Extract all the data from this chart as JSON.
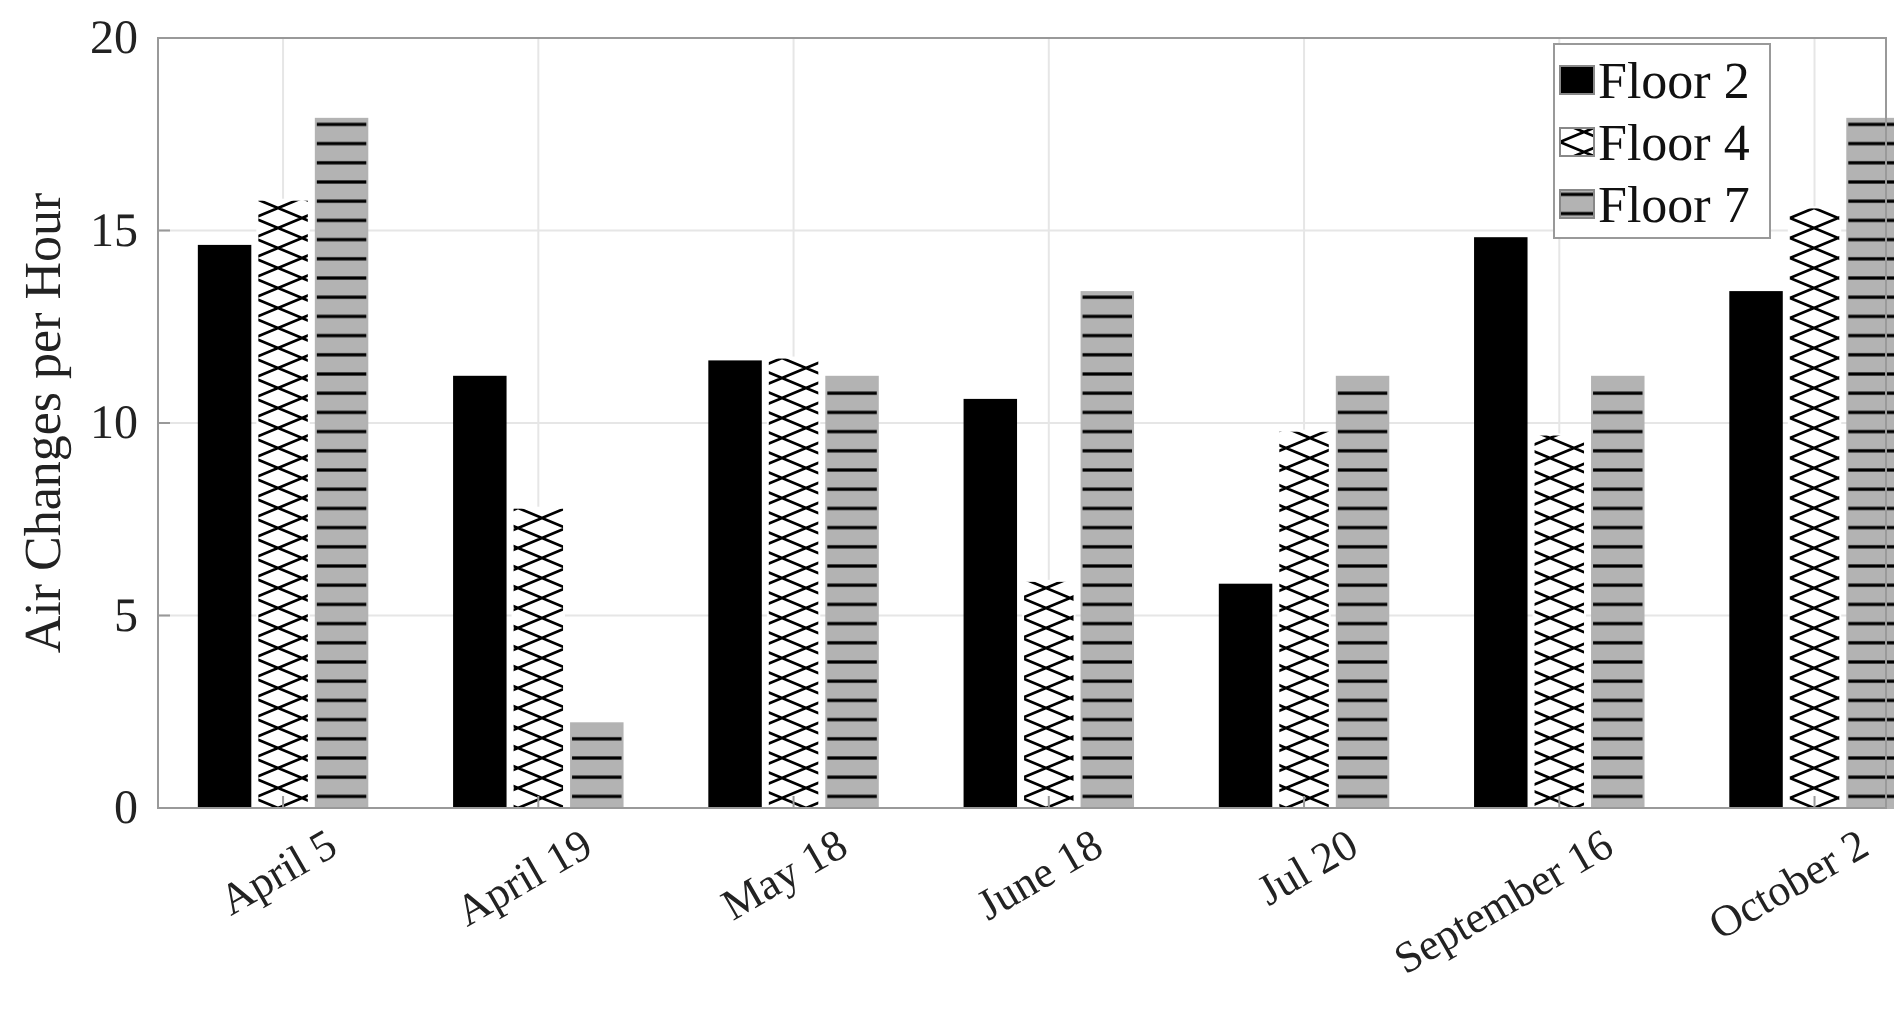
{
  "chart_data": {
    "type": "bar",
    "ylabel": "Air Changes per Hour",
    "categories": [
      "April 5",
      "April 19",
      "May 18",
      "June 18",
      "Jul 20",
      "September 16",
      "October 2"
    ],
    "series": [
      {
        "name": "Floor 2",
        "color": "#000000",
        "values": [
          14.6,
          11.2,
          11.6,
          10.6,
          5.8,
          14.8,
          13.4
        ]
      },
      {
        "name": "Floor 4",
        "color": "#ffffff",
        "values": [
          15.8,
          7.8,
          11.7,
          5.9,
          9.8,
          9.7,
          15.6
        ]
      },
      {
        "name": "Floor 7",
        "color": "#b3b3b3",
        "values": [
          17.9,
          2.2,
          11.2,
          13.4,
          11.2,
          11.2,
          17.9
        ]
      }
    ],
    "ylim": [
      0,
      20
    ],
    "yticks": [
      0,
      5,
      10,
      15,
      20
    ],
    "grid": true,
    "legend": "top right"
  }
}
